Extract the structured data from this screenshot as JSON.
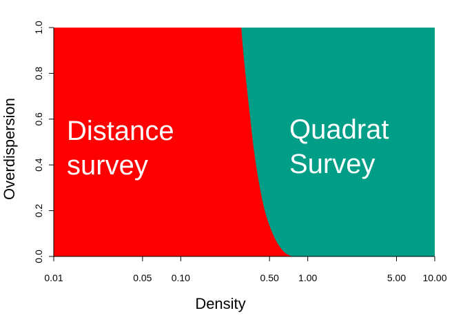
{
  "chart_data": {
    "type": "area",
    "xlabel": "Density",
    "ylabel": "Overdispersion",
    "x_scale": "log",
    "xlim": [
      0.01,
      10
    ],
    "ylim": [
      0,
      1
    ],
    "x_ticks": [
      0.01,
      0.05,
      0.1,
      0.5,
      1,
      5,
      10
    ],
    "x_tick_labels": [
      "0.01",
      "0.05",
      "0.10",
      "0.50",
      "1.00",
      "5.00",
      "10.00"
    ],
    "y_ticks": [
      0,
      0.2,
      0.4,
      0.6,
      0.8,
      1.0
    ],
    "y_tick_labels": [
      "0.0",
      "0.2",
      "0.4",
      "0.6",
      "0.8",
      "1.0"
    ],
    "boundary": {
      "name": "",
      "x": [
        0.3,
        0.31,
        0.33,
        0.35,
        0.38,
        0.42,
        0.47,
        0.55,
        0.65,
        0.76
      ],
      "y": [
        1.0,
        0.9,
        0.75,
        0.62,
        0.45,
        0.3,
        0.18,
        0.08,
        0.02,
        0.0
      ]
    },
    "regions": [
      {
        "label": "Distance\nsurvey",
        "label_lines": [
          "Distance",
          "survey"
        ],
        "side": "left",
        "color": "#ff0000"
      },
      {
        "label": "Quadrat\nSurvey",
        "label_lines": [
          "Quadrat",
          "Survey"
        ],
        "side": "right",
        "color": "#009e87"
      }
    ]
  }
}
